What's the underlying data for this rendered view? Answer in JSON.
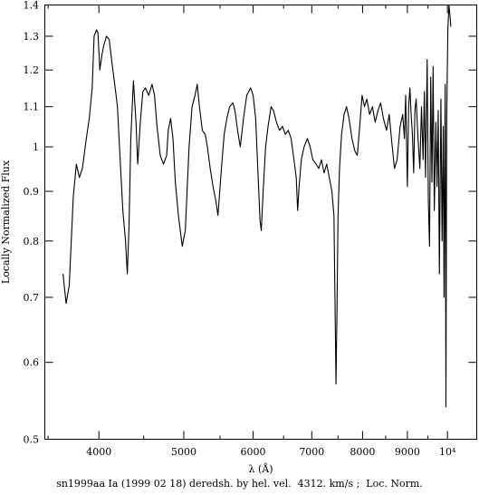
{
  "chart_data": {
    "type": "line",
    "scale": {
      "x": "log",
      "y": "log"
    },
    "xlabel": "λ (Å)",
    "ylabel": "Locally Normalized Flux",
    "caption": "sn1999aa Ia (1999 02 18) deredsh. by hel. vel.  4312. km/s ;  Loc. Norm.",
    "xlim": [
      3470,
      10800
    ],
    "ylim": [
      0.5,
      1.4
    ],
    "x_ticks": [
      {
        "value": 4000,
        "label": "4000"
      },
      {
        "value": 5000,
        "label": "5000"
      },
      {
        "value": 6000,
        "label": "6000"
      },
      {
        "value": 7000,
        "label": "7000"
      },
      {
        "value": 8000,
        "label": "8000"
      },
      {
        "value": 9000,
        "label": "9000"
      },
      {
        "value": 10000,
        "label": "10⁴"
      }
    ],
    "x_minor_ticks": [
      3500,
      4500,
      5500,
      6500,
      7500,
      8500,
      9500
    ],
    "y_ticks": [
      {
        "value": 0.5,
        "label": "0.5"
      },
      {
        "value": 0.6,
        "label": "0.6"
      },
      {
        "value": 0.7,
        "label": "0.7"
      },
      {
        "value": 0.8,
        "label": "0.8"
      },
      {
        "value": 0.9,
        "label": "0.9"
      },
      {
        "value": 1.0,
        "label": "1"
      },
      {
        "value": 1.1,
        "label": "1.1"
      },
      {
        "value": 1.2,
        "label": "1.2"
      },
      {
        "value": 1.3,
        "label": "1.3"
      },
      {
        "value": 1.4,
        "label": "1.4"
      }
    ],
    "grid": false,
    "series": [
      {
        "color": "#000000",
        "points": [
          [
            3640,
            0.74
          ],
          [
            3670,
            0.69
          ],
          [
            3700,
            0.72
          ],
          [
            3740,
            0.89
          ],
          [
            3770,
            0.96
          ],
          [
            3800,
            0.93
          ],
          [
            3830,
            0.95
          ],
          [
            3870,
            1.02
          ],
          [
            3900,
            1.07
          ],
          [
            3930,
            1.15
          ],
          [
            3950,
            1.3
          ],
          [
            3975,
            1.32
          ],
          [
            3990,
            1.31
          ],
          [
            4010,
            1.2
          ],
          [
            4030,
            1.24
          ],
          [
            4050,
            1.27
          ],
          [
            4080,
            1.3
          ],
          [
            4110,
            1.29
          ],
          [
            4140,
            1.22
          ],
          [
            4180,
            1.14
          ],
          [
            4200,
            1.1
          ],
          [
            4230,
            0.97
          ],
          [
            4260,
            0.86
          ],
          [
            4290,
            0.8
          ],
          [
            4310,
            0.74
          ],
          [
            4330,
            0.83
          ],
          [
            4350,
            1.02
          ],
          [
            4380,
            1.17
          ],
          [
            4410,
            1.06
          ],
          [
            4430,
            0.96
          ],
          [
            4460,
            1.06
          ],
          [
            4490,
            1.14
          ],
          [
            4520,
            1.15
          ],
          [
            4560,
            1.13
          ],
          [
            4600,
            1.16
          ],
          [
            4630,
            1.13
          ],
          [
            4660,
            1.05
          ],
          [
            4700,
            0.98
          ],
          [
            4740,
            0.96
          ],
          [
            4780,
            0.98
          ],
          [
            4800,
            1.04
          ],
          [
            4830,
            1.07
          ],
          [
            4860,
            1.02
          ],
          [
            4890,
            0.92
          ],
          [
            4930,
            0.85
          ],
          [
            4980,
            0.79
          ],
          [
            5020,
            0.82
          ],
          [
            5070,
            1.0
          ],
          [
            5110,
            1.1
          ],
          [
            5150,
            1.13
          ],
          [
            5180,
            1.16
          ],
          [
            5210,
            1.1
          ],
          [
            5250,
            1.04
          ],
          [
            5290,
            1.03
          ],
          [
            5320,
            1.0
          ],
          [
            5360,
            0.95
          ],
          [
            5400,
            0.91
          ],
          [
            5440,
            0.88
          ],
          [
            5470,
            0.85
          ],
          [
            5520,
            0.95
          ],
          [
            5560,
            1.03
          ],
          [
            5600,
            1.07
          ],
          [
            5640,
            1.1
          ],
          [
            5690,
            1.11
          ],
          [
            5720,
            1.09
          ],
          [
            5760,
            1.04
          ],
          [
            5800,
            1.0
          ],
          [
            5850,
            1.07
          ],
          [
            5900,
            1.13
          ],
          [
            5960,
            1.15
          ],
          [
            6000,
            1.13
          ],
          [
            6040,
            1.07
          ],
          [
            6080,
            0.93
          ],
          [
            6110,
            0.84
          ],
          [
            6130,
            0.82
          ],
          [
            6160,
            0.9
          ],
          [
            6200,
            1.0
          ],
          [
            6240,
            1.05
          ],
          [
            6290,
            1.1
          ],
          [
            6330,
            1.09
          ],
          [
            6380,
            1.06
          ],
          [
            6430,
            1.04
          ],
          [
            6480,
            1.05
          ],
          [
            6530,
            1.03
          ],
          [
            6580,
            1.04
          ],
          [
            6630,
            1.02
          ],
          [
            6680,
            0.97
          ],
          [
            6720,
            0.93
          ],
          [
            6745,
            0.86
          ],
          [
            6770,
            0.91
          ],
          [
            6810,
            0.97
          ],
          [
            6860,
            1.0
          ],
          [
            6920,
            1.02
          ],
          [
            6970,
            1.0
          ],
          [
            7020,
            0.97
          ],
          [
            7080,
            0.96
          ],
          [
            7130,
            0.95
          ],
          [
            7180,
            0.97
          ],
          [
            7230,
            0.94
          ],
          [
            7280,
            0.96
          ],
          [
            7330,
            0.93
          ],
          [
            7380,
            0.9
          ],
          [
            7420,
            0.85
          ],
          [
            7440,
            0.7
          ],
          [
            7460,
            0.57
          ],
          [
            7480,
            0.68
          ],
          [
            7500,
            0.85
          ],
          [
            7530,
            0.95
          ],
          [
            7570,
            1.03
          ],
          [
            7620,
            1.08
          ],
          [
            7670,
            1.1
          ],
          [
            7720,
            1.07
          ],
          [
            7780,
            1.02
          ],
          [
            7840,
            0.99
          ],
          [
            7890,
            0.98
          ],
          [
            7940,
            1.05
          ],
          [
            7990,
            1.13
          ],
          [
            8040,
            1.1
          ],
          [
            8090,
            1.12
          ],
          [
            8150,
            1.08
          ],
          [
            8210,
            1.1
          ],
          [
            8270,
            1.06
          ],
          [
            8330,
            1.09
          ],
          [
            8390,
            1.11
          ],
          [
            8450,
            1.07
          ],
          [
            8520,
            1.04
          ],
          [
            8580,
            1.08
          ],
          [
            8640,
            1.01
          ],
          [
            8700,
            0.95
          ],
          [
            8760,
            0.97
          ],
          [
            8830,
            1.05
          ],
          [
            8890,
            1.08
          ],
          [
            8930,
            1.02
          ],
          [
            8960,
            1.13
          ],
          [
            9000,
            0.91
          ],
          [
            9030,
            1.1
          ],
          [
            9060,
            1.15
          ],
          [
            9090,
            1.08
          ],
          [
            9120,
            1.03
          ],
          [
            9150,
            0.94
          ],
          [
            9180,
            1.09
          ],
          [
            9210,
            1.12
          ],
          [
            9250,
            1.03
          ],
          [
            9300,
            0.95
          ],
          [
            9340,
            1.1
          ],
          [
            9380,
            0.97
          ],
          [
            9410,
            1.14
          ],
          [
            9440,
            0.93
          ],
          [
            9480,
            1.23
          ],
          [
            9510,
            0.88
          ],
          [
            9540,
            0.79
          ],
          [
            9570,
            1.18
          ],
          [
            9600,
            0.92
          ],
          [
            9630,
            1.21
          ],
          [
            9660,
            0.86
          ],
          [
            9700,
            1.06
          ],
          [
            9730,
            0.91
          ],
          [
            9760,
            1.09
          ],
          [
            9790,
            0.74
          ],
          [
            9830,
            1.12
          ],
          [
            9860,
            0.8
          ],
          [
            9890,
            1.05
          ],
          [
            9910,
            0.7
          ],
          [
            9940,
            1.16
          ],
          [
            9960,
            0.54
          ],
          [
            9980,
            1.07
          ],
          [
            10010,
            1.32
          ],
          [
            10040,
            1.4
          ],
          [
            10070,
            1.36
          ],
          [
            10090,
            1.33
          ]
        ]
      }
    ]
  }
}
